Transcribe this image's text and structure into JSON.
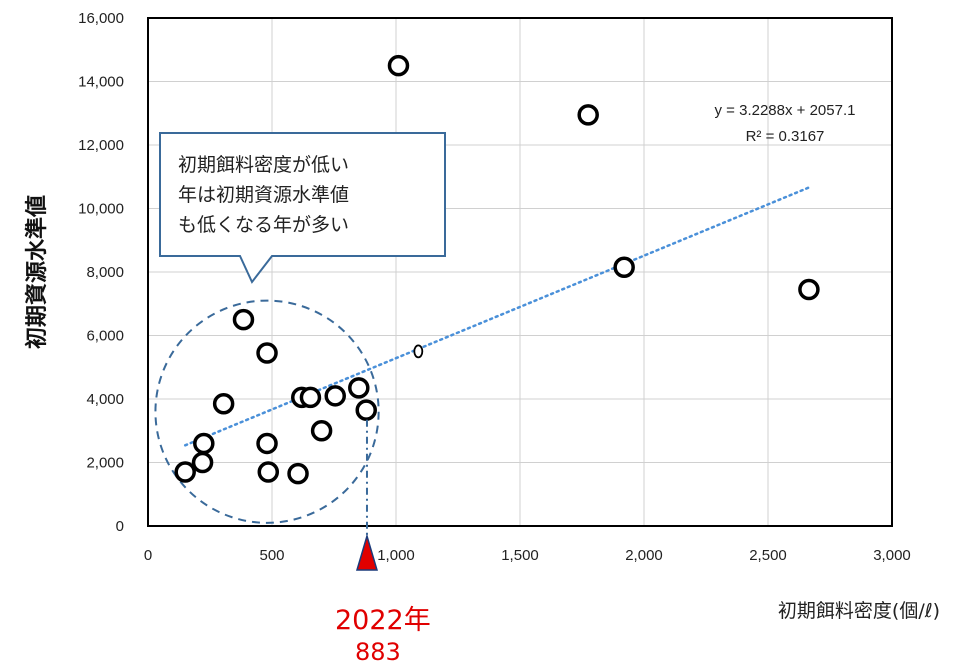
{
  "chart_data": {
    "type": "scatter",
    "title": "",
    "xlabel": "初期餌料密度(個/ℓ)",
    "ylabel": "初期資源水準値",
    "xlim": [
      0,
      3000
    ],
    "ylim": [
      0,
      16000
    ],
    "x_ticks": [
      "0",
      "500",
      "1,000",
      "1,500",
      "2,000",
      "2,500",
      "3,000"
    ],
    "y_ticks": [
      "0",
      "2,000",
      "4,000",
      "6,000",
      "8,000",
      "10,000",
      "12,000",
      "14,000",
      "16,000"
    ],
    "grid": true,
    "series": [
      {
        "points": [
          {
            "x": 150,
            "y": 1700
          },
          {
            "x": 220,
            "y": 2000
          },
          {
            "x": 225,
            "y": 2600
          },
          {
            "x": 305,
            "y": 3850
          },
          {
            "x": 385,
            "y": 6500
          },
          {
            "x": 480,
            "y": 5450
          },
          {
            "x": 480,
            "y": 2600
          },
          {
            "x": 485,
            "y": 1700
          },
          {
            "x": 605,
            "y": 1650
          },
          {
            "x": 620,
            "y": 4050
          },
          {
            "x": 655,
            "y": 4050
          },
          {
            "x": 700,
            "y": 3000
          },
          {
            "x": 755,
            "y": 4100
          },
          {
            "x": 850,
            "y": 4350
          },
          {
            "x": 880,
            "y": 3650
          },
          {
            "x": 1010,
            "y": 14500
          },
          {
            "x": 1775,
            "y": 12950
          },
          {
            "x": 1920,
            "y": 8150
          },
          {
            "x": 2665,
            "y": 7450
          }
        ],
        "small_point": {
          "x": 1090,
          "y": 5500
        }
      }
    ],
    "trendline": {
      "slope": 3.2288,
      "intercept": 2057.1,
      "x_start": 150,
      "x_end": 2665,
      "style": "dotted",
      "color": "#4a90d9"
    },
    "annotations": {
      "equation": "y = 3.2288x + 2057.1",
      "r_squared": "R² = 0.3167",
      "callout": "初期餌料密度が低い\n年は初期資源水準値\nも低くなる年が多い",
      "marker_year": "2022年",
      "marker_value": "883",
      "marker_x": 883,
      "highlight_circle": {
        "cx": 480,
        "cy": 3600,
        "rx": 450,
        "ry": 3500
      }
    },
    "colors": {
      "point": "#000000",
      "trend": "#4a90d9",
      "dashed": "#3a6a9a",
      "marker": "#e00000",
      "callout_border": "#3a6a9a"
    }
  }
}
